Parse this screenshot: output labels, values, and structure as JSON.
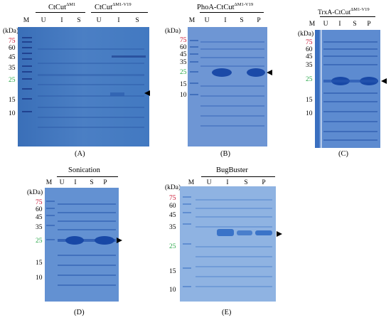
{
  "units": "(kDa)",
  "mw_colors": {
    "red": "#c8102e",
    "green": "#2aa84a",
    "black": "#000000"
  },
  "panels": [
    {
      "id": "A",
      "caption": "(A)",
      "groups": [
        {
          "name": "CtCut",
          "sup": "ΔM1"
        },
        {
          "name": "CtCut",
          "sup": "ΔM1-V19"
        }
      ],
      "lanes": [
        "M",
        "U",
        "I",
        "S",
        "U",
        "I",
        "S"
      ],
      "markers": [
        "75",
        "60",
        "45",
        "35",
        "25",
        "15",
        "10"
      ]
    },
    {
      "id": "B",
      "caption": "(B)",
      "groups": [
        {
          "name": "PhoA-CtCut",
          "sup": "ΔM1-V19"
        }
      ],
      "lanes": [
        "M",
        "U",
        "I",
        "S",
        "P"
      ],
      "markers": [
        "75",
        "60",
        "45",
        "35",
        "25",
        "15",
        "10"
      ]
    },
    {
      "id": "C",
      "caption": "(C)",
      "groups": [
        {
          "name": "TrxA-CtCut",
          "sup": "ΔM1-V19"
        }
      ],
      "lanes": [
        "M",
        "U",
        "I",
        "S",
        "P"
      ],
      "markers": [
        "75",
        "60",
        "45",
        "35",
        "25",
        "15",
        "10"
      ]
    },
    {
      "id": "D",
      "caption": "(D)",
      "groups": [
        {
          "name": "Sonication",
          "sup": ""
        }
      ],
      "lanes": [
        "M",
        "U",
        "I",
        "S",
        "P"
      ],
      "markers": [
        "75",
        "60",
        "45",
        "35",
        "25",
        "15",
        "10"
      ]
    },
    {
      "id": "E",
      "caption": "(E)",
      "groups": [
        {
          "name": "BugBuster",
          "sup": ""
        }
      ],
      "lanes": [
        "M",
        "U",
        "I",
        "S",
        "P"
      ],
      "markers": [
        "75",
        "60",
        "45",
        "35",
        "25",
        "15",
        "10"
      ]
    }
  ]
}
